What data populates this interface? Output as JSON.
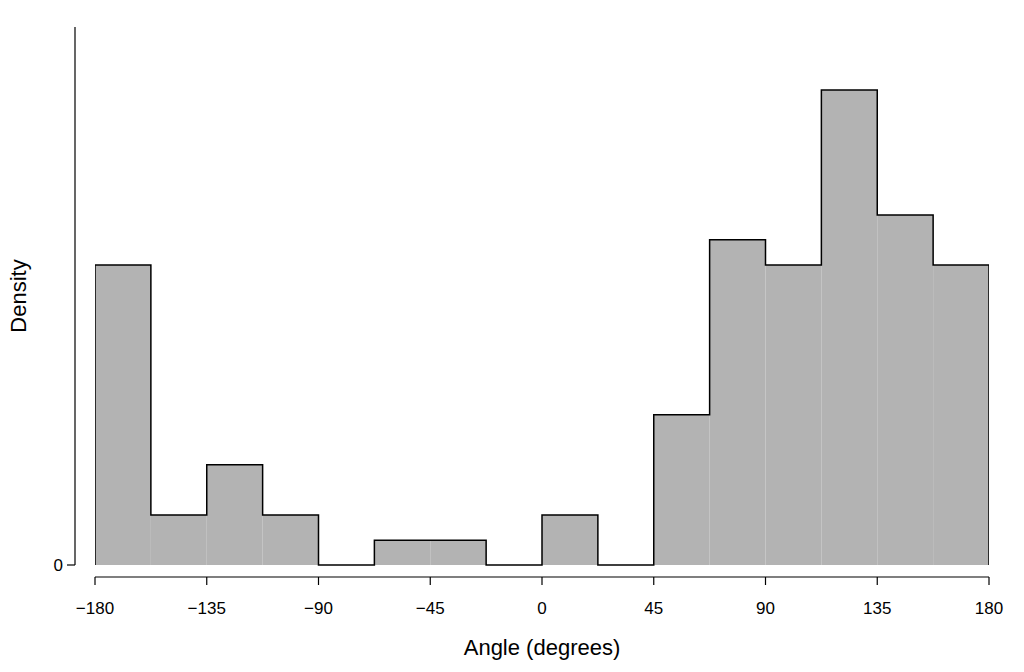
{
  "chart_data": {
    "type": "histogram",
    "x_label": "Angle (degrees)",
    "y_label": "Density",
    "bins": [
      -180,
      -157.5,
      -135,
      -112.5,
      -90,
      -67.5,
      -45,
      -22.5,
      0,
      22.5,
      45,
      67.5,
      90,
      112.5,
      135,
      157.5,
      180
    ],
    "values": [
      0.00533,
      0.00089,
      0.00178,
      0.00089,
      0,
      0.00044,
      0.00044,
      0,
      0.00089,
      0,
      0.00267,
      0.00578,
      0.00533,
      0.00844,
      0.00622,
      0.00533
    ],
    "color": "#b3b3b3",
    "xlim": [
      -180,
      180
    ],
    "xticks": [
      {
        "value": -180,
        "label": "−180"
      },
      {
        "value": -135,
        "label": "−135"
      },
      {
        "value": -90,
        "label": "−90"
      },
      {
        "value": -45,
        "label": "−45"
      },
      0,
      45,
      90,
      135,
      180
    ],
    "ylim": [
      0,
      0.00956
    ],
    "yticks": [
      0
    ]
  }
}
